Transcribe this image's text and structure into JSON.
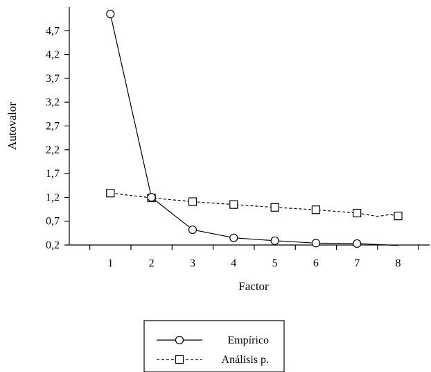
{
  "chart_data": {
    "type": "line",
    "title": "",
    "xlabel": "Factor",
    "ylabel": "Autovalor",
    "x": [
      1,
      2,
      3,
      4,
      5,
      6,
      7,
      8
    ],
    "x_ticks": [
      "1",
      "2",
      "3",
      "4",
      "5",
      "6",
      "7",
      "8"
    ],
    "y_ticks": [
      "0,2",
      "0,7",
      "1,2",
      "1,7",
      "2,2",
      "2,7",
      "3,2",
      "3,7",
      "4,2",
      "4,7"
    ],
    "y_tick_values": [
      0.2,
      0.7,
      1.2,
      1.7,
      2.2,
      2.7,
      3.2,
      3.7,
      4.2,
      4.7
    ],
    "xlim": [
      0,
      8.8
    ],
    "ylim": [
      0.2,
      5.2
    ],
    "grid": false,
    "legend_placement": "bottom-center",
    "series": [
      {
        "name": "Empírico",
        "marker": "circle",
        "line_style": "solid",
        "values": [
          5.05,
          1.2,
          0.52,
          0.35,
          0.29,
          0.24,
          0.23,
          0.19
        ],
        "marked_points": [
          1,
          2,
          3,
          4,
          5,
          6,
          7
        ]
      },
      {
        "name": "Análisis p.",
        "marker": "square",
        "line_style": "dashed",
        "values": [
          1.29,
          1.19,
          1.11,
          1.05,
          0.99,
          0.94,
          0.87,
          0.81
        ],
        "marked_points": [
          1,
          2,
          3,
          4,
          5,
          6,
          7,
          8
        ],
        "extra_line_points": [
          [
            7.5,
            0.8
          ],
          [
            7.8,
            0.84
          ]
        ]
      }
    ]
  }
}
